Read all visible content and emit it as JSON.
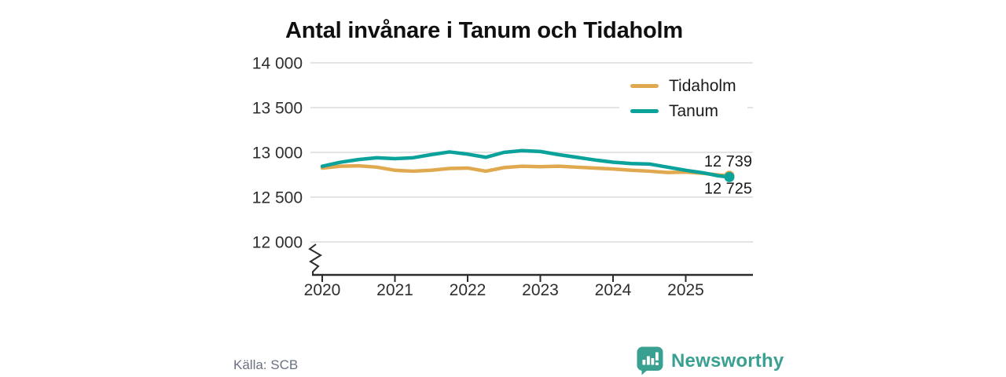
{
  "title": "Antal invånare i Tanum och Tidaholm",
  "source": "Källa: SCB",
  "brand": {
    "name": "Newsworthy",
    "icon": "bar-chart-speech-bubble"
  },
  "colors": {
    "tidaholm": "#e0a94f",
    "tanum": "#0aa29a",
    "grid": "#dcdcdc",
    "axis": "#2b2b2b",
    "tick_label": "#2e2e2e",
    "end_label": "#1a1a1a",
    "title": "#101010",
    "source_text": "#6a7180",
    "brand_teal": "#3aa091"
  },
  "legend": [
    {
      "label": "Tidaholm",
      "color": "#e0a94f"
    },
    {
      "label": "Tanum",
      "color": "#0aa29a"
    }
  ],
  "chart_data": {
    "type": "line",
    "title": "Antal invånare i Tanum och Tidaholm",
    "xlabel": "",
    "ylabel": "",
    "grid": true,
    "legend_position": "top-right",
    "axis_break": true,
    "y_display_range": [
      12000,
      14000
    ],
    "x_range": [
      2020,
      2025.9
    ],
    "x": [
      2020.0,
      2020.25,
      2020.5,
      2020.75,
      2021.0,
      2021.25,
      2021.5,
      2021.75,
      2022.0,
      2022.25,
      2022.5,
      2022.75,
      2023.0,
      2023.25,
      2023.5,
      2023.75,
      2024.0,
      2024.25,
      2024.5,
      2024.75,
      2025.0,
      2025.25,
      2025.45,
      2025.6
    ],
    "series": [
      {
        "name": "Tidaholm",
        "color": "#e0a94f",
        "values": [
          12825,
          12845,
          12850,
          12835,
          12800,
          12790,
          12800,
          12820,
          12825,
          12790,
          12830,
          12845,
          12840,
          12845,
          12835,
          12825,
          12815,
          12800,
          12790,
          12775,
          12780,
          12765,
          12748,
          12739
        ]
      },
      {
        "name": "Tanum",
        "color": "#0aa29a",
        "values": [
          12845,
          12890,
          12920,
          12940,
          12930,
          12940,
          12975,
          13005,
          12980,
          12945,
          13000,
          13020,
          13010,
          12975,
          12945,
          12915,
          12890,
          12875,
          12870,
          12835,
          12800,
          12770,
          12738,
          12725
        ]
      }
    ],
    "end_labels": [
      {
        "series": "Tidaholm",
        "text": "12 739",
        "value": 12739
      },
      {
        "series": "Tanum",
        "text": "12 725",
        "value": 12725
      }
    ],
    "yticks": [
      {
        "value": 14000,
        "label": "14 000"
      },
      {
        "value": 13500,
        "label": "13 500"
      },
      {
        "value": 13000,
        "label": "13 000"
      },
      {
        "value": 12500,
        "label": "12 500"
      },
      {
        "value": 12000,
        "label": "12 000"
      }
    ],
    "xticks": [
      {
        "value": 2020,
        "label": "2020"
      },
      {
        "value": 2021,
        "label": "2021"
      },
      {
        "value": 2022,
        "label": "2022"
      },
      {
        "value": 2023,
        "label": "2023"
      },
      {
        "value": 2024,
        "label": "2024"
      },
      {
        "value": 2025,
        "label": "2025"
      }
    ]
  }
}
